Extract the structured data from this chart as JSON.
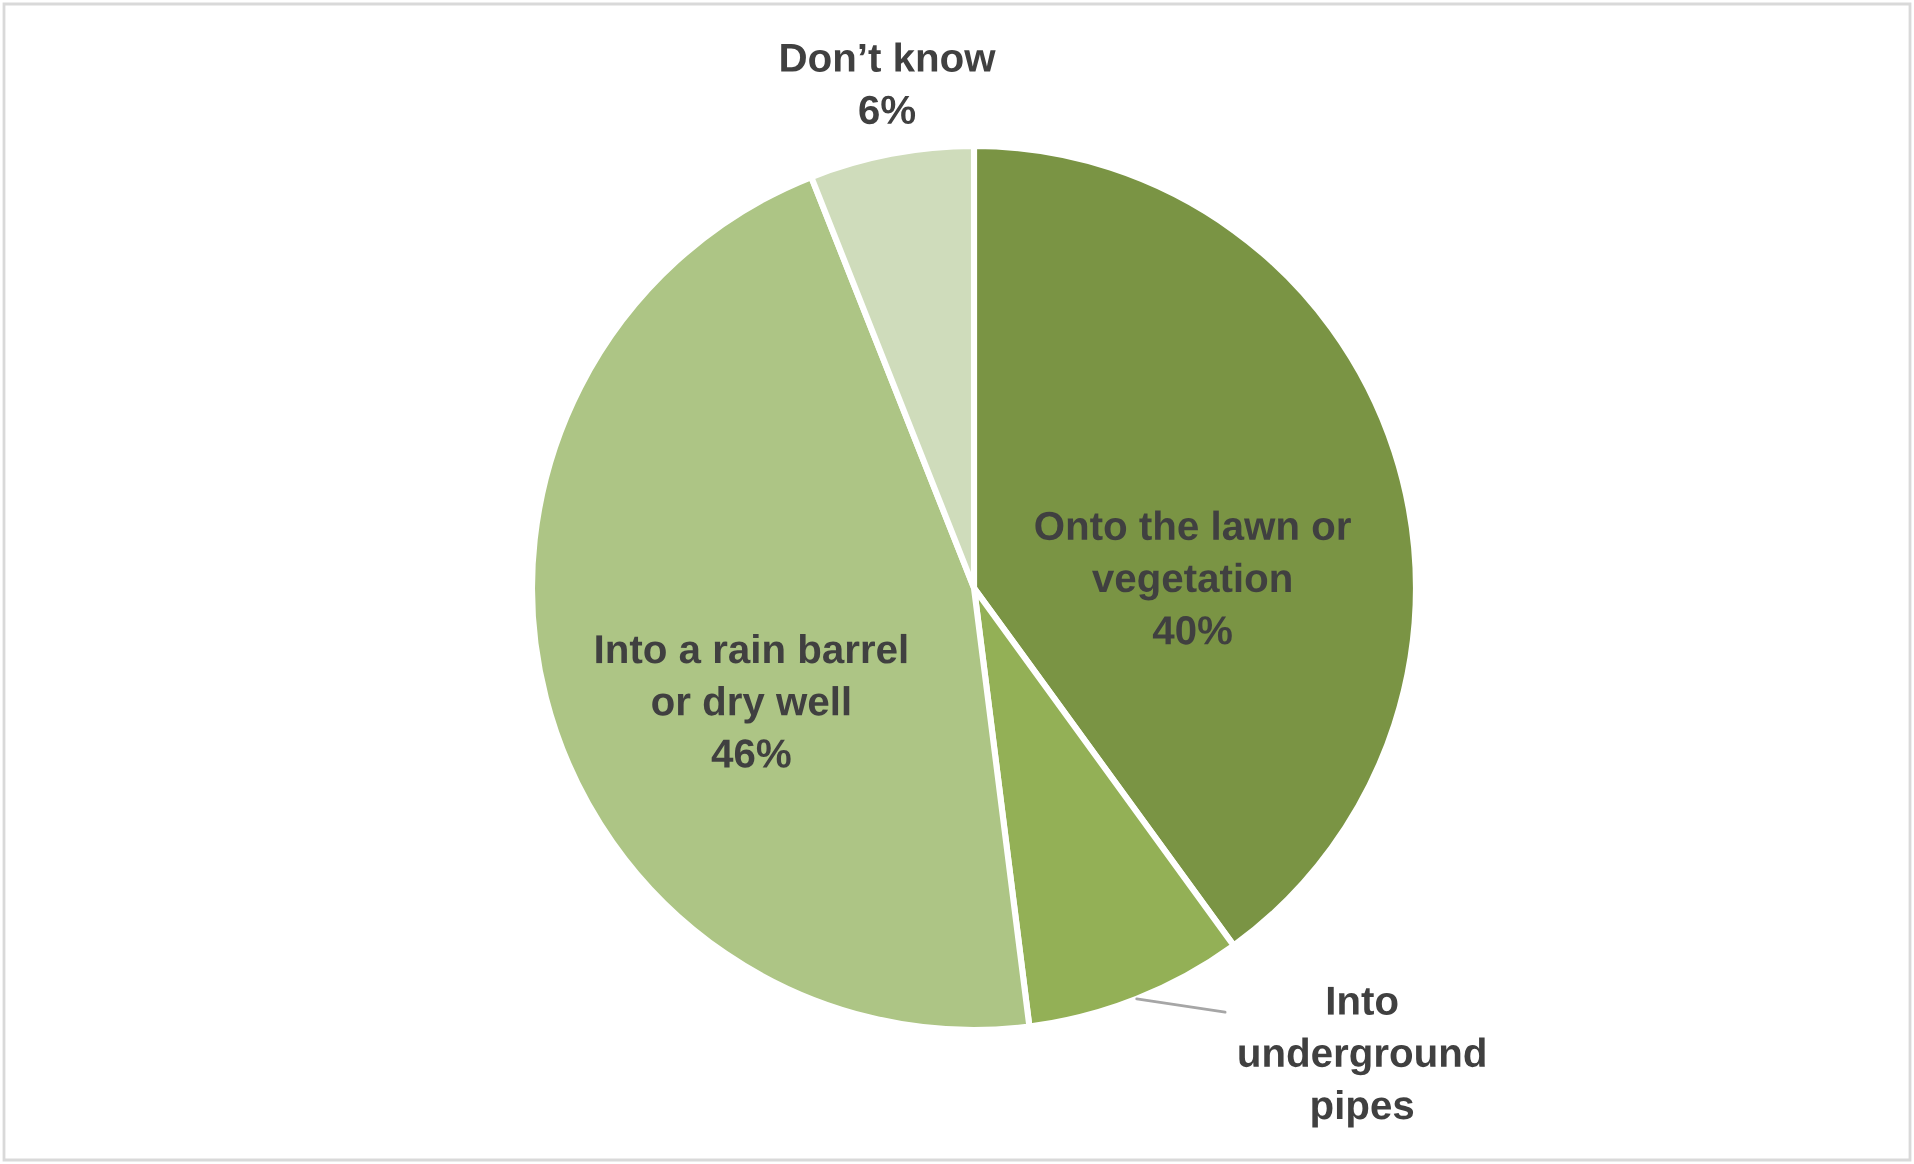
{
  "chart_data": {
    "type": "pie",
    "categories": [
      "Onto the lawn or\nvegetation",
      "Into\nunderground\npipes",
      "Into a rain barrel\nor dry well",
      "Don’t know"
    ],
    "values": [
      40,
      8,
      46,
      6
    ],
    "colors": [
      "#7a9444",
      "#93b056",
      "#adc585",
      "#cfdcbb"
    ],
    "value_labels": [
      "40%",
      null,
      "46%",
      "6%"
    ]
  }
}
